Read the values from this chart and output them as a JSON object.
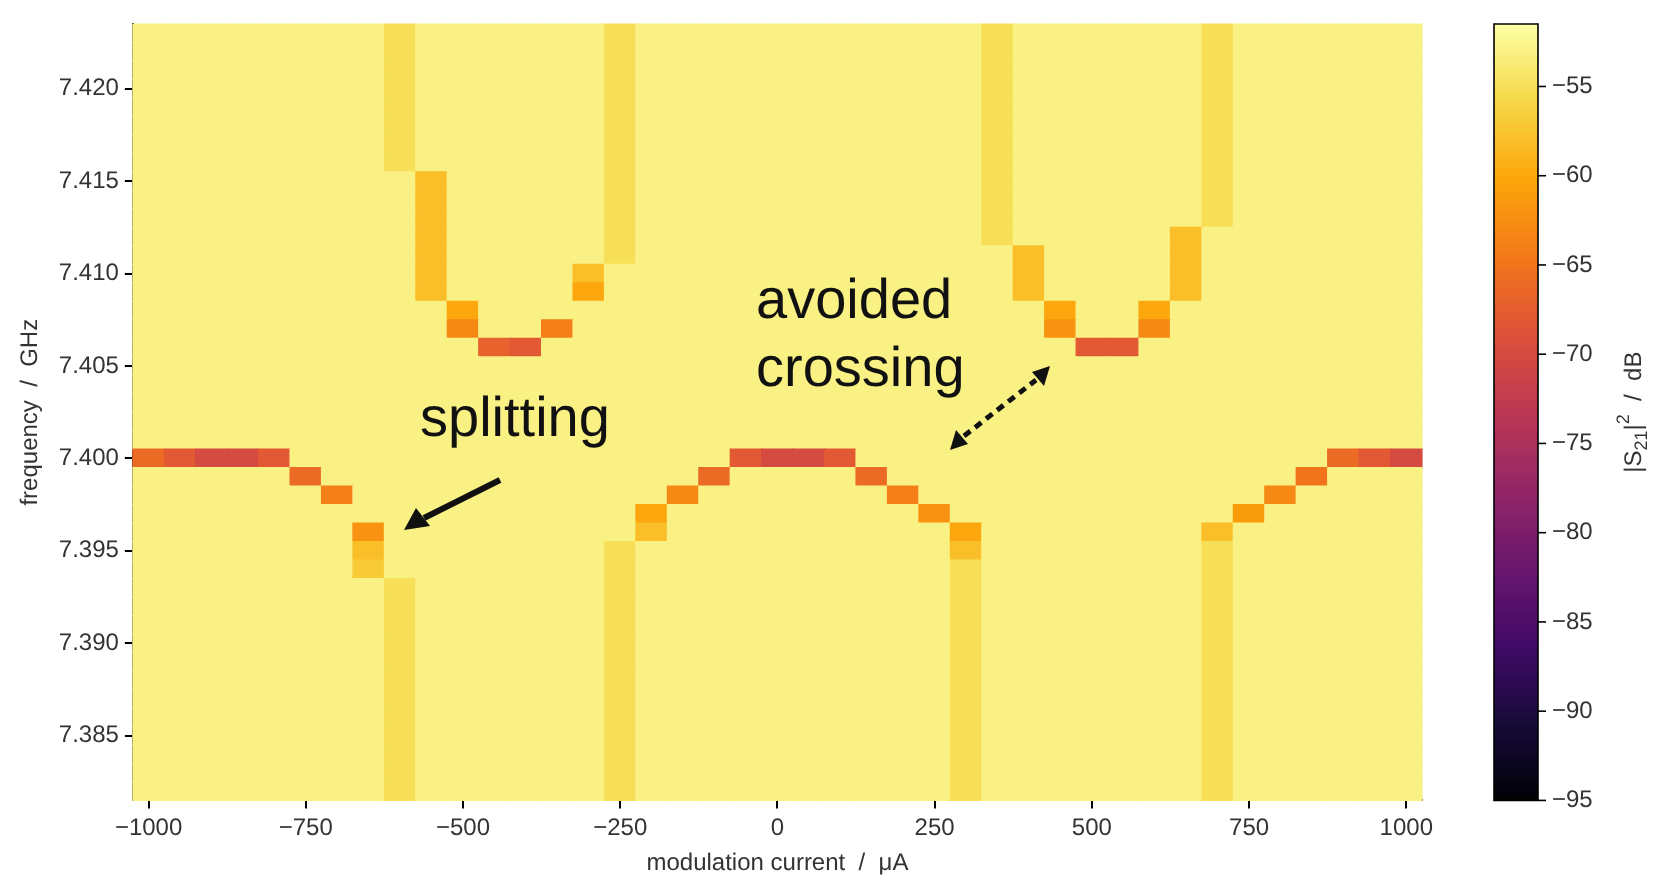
{
  "chart_data": {
    "type": "heatmap",
    "xlabel": "modulation current  /  μA",
    "ylabel": "frequency  /  GHz",
    "clabel": "|S$_{21}$|$^{2}$  /  dB",
    "annotations": [
      "splitting",
      "avoided crossing"
    ],
    "categories": [
      "−1000",
      null,
      null,
      null,
      null,
      "−750",
      null,
      null,
      null,
      null,
      "−500",
      null,
      null,
      null,
      null,
      "−250",
      null,
      null,
      null,
      null,
      "0",
      null,
      null,
      null,
      null,
      "250",
      null,
      null,
      null,
      null,
      "500",
      null,
      null,
      null,
      null,
      "750",
      null,
      null,
      null,
      null,
      "1000"
    ],
    "y_categories": [
      null,
      null,
      null,
      "7.420",
      null,
      null,
      null,
      null,
      "7.415",
      null,
      null,
      null,
      null,
      "7.410",
      null,
      null,
      null,
      null,
      "7.405",
      null,
      null,
      null,
      null,
      "7.400",
      null,
      null,
      null,
      null,
      "7.395",
      null,
      null,
      null,
      null,
      "7.390",
      null,
      null,
      null,
      null,
      "7.385",
      null,
      null,
      null
    ],
    "clim": [
      -95,
      -51.5
    ],
    "cticks": [
      -95,
      -90,
      -85,
      -80,
      -75,
      -70,
      -65,
      -60,
      -55
    ],
    "cells": [
      [
        -53,
        -53,
        -53,
        -53,
        -53,
        -53,
        -53,
        -53,
        -55,
        -53,
        -53,
        -53,
        -53,
        -53,
        -53,
        -55,
        -53,
        -53,
        -53,
        -53,
        -53,
        -53,
        -53,
        -53,
        -53,
        -53,
        -53,
        -55,
        -53,
        -53,
        -53,
        -53,
        -53,
        -53,
        -55,
        -53,
        -53,
        -53,
        -53,
        -53,
        -53
      ],
      [
        -53,
        -53,
        -53,
        -53,
        -53,
        -53,
        -53,
        -53,
        -55,
        -53,
        -53,
        -53,
        -53,
        -53,
        -53,
        -55,
        -53,
        -53,
        -53,
        -53,
        -53,
        -53,
        -53,
        -53,
        -53,
        -53,
        -53,
        -55,
        -53,
        -53,
        -53,
        -53,
        -53,
        -53,
        -55,
        -53,
        -53,
        -53,
        -53,
        -53,
        -53
      ],
      [
        -53,
        -53,
        -53,
        -53,
        -53,
        -53,
        -53,
        -53,
        -55,
        -53,
        -53,
        -53,
        -53,
        -53,
        -53,
        -55,
        -53,
        -53,
        -53,
        -53,
        -53,
        -53,
        -53,
        -53,
        -53,
        -53,
        -53,
        -55,
        -53,
        -53,
        -53,
        -53,
        -53,
        -53,
        -55,
        -53,
        -53,
        -53,
        -53,
        -53,
        -53
      ],
      [
        -53,
        -53,
        -53,
        -53,
        -53,
        -53,
        -53,
        -53,
        -55,
        -53,
        -53,
        -53,
        -53,
        -53,
        -53,
        -55,
        -53,
        -53,
        -53,
        -53,
        -53,
        -53,
        -53,
        -53,
        -53,
        -53,
        -53,
        -55,
        -53,
        -53,
        -53,
        -53,
        -53,
        -53,
        -55,
        -53,
        -53,
        -53,
        -53,
        -53,
        -53
      ],
      [
        -53,
        -53,
        -53,
        -53,
        -53,
        -53,
        -53,
        -53,
        -55,
        -53,
        -53,
        -53,
        -53,
        -53,
        -53,
        -55,
        -53,
        -53,
        -53,
        -53,
        -53,
        -53,
        -53,
        -53,
        -53,
        -53,
        -53,
        -55,
        -53,
        -53,
        -53,
        -53,
        -53,
        -53,
        -55,
        -53,
        -53,
        -53,
        -53,
        -53,
        -53
      ],
      [
        -53,
        -53,
        -53,
        -53,
        -53,
        -53,
        -53,
        -53,
        -55,
        -53,
        -53,
        -53,
        -53,
        -53,
        -53,
        -55,
        -53,
        -53,
        -53,
        -53,
        -53,
        -53,
        -53,
        -53,
        -53,
        -53,
        -53,
        -55,
        -53,
        -53,
        -53,
        -53,
        -53,
        -53,
        -55,
        -53,
        -53,
        -53,
        -53,
        -53,
        -53
      ],
      [
        -53,
        -53,
        -53,
        -53,
        -53,
        -53,
        -53,
        -53,
        -55,
        -53,
        -53,
        -53,
        -53,
        -53,
        -53,
        -55,
        -53,
        -53,
        -53,
        -53,
        -53,
        -53,
        -53,
        -53,
        -53,
        -53,
        -53,
        -55,
        -53,
        -53,
        -53,
        -53,
        -53,
        -53,
        -55,
        -53,
        -53,
        -53,
        -53,
        -53,
        -53
      ],
      [
        -53,
        -53,
        -53,
        -53,
        -53,
        -53,
        -53,
        -53,
        -55,
        -53,
        -53,
        -53,
        -53,
        -53,
        -53,
        -55,
        -53,
        -53,
        -53,
        -53,
        -53,
        -53,
        -53,
        -53,
        -53,
        -53,
        -53,
        -55,
        -53,
        -53,
        -53,
        -53,
        -53,
        -53,
        -55,
        -53,
        -53,
        -53,
        -53,
        -53,
        -53
      ],
      [
        -53,
        -53,
        -53,
        -53,
        -53,
        -53,
        -53,
        -53,
        -53,
        -58,
        -53,
        -53,
        -53,
        -53,
        -53,
        -55,
        -53,
        -53,
        -53,
        -53,
        -53,
        -53,
        -53,
        -53,
        -53,
        -53,
        -53,
        -55,
        -53,
        -53,
        -53,
        -53,
        -53,
        -53,
        -55,
        -53,
        -53,
        -53,
        -53,
        -53,
        -53
      ],
      [
        -53,
        -53,
        -53,
        -53,
        -53,
        -53,
        -53,
        -53,
        -53,
        -58,
        -53,
        -53,
        -53,
        -53,
        -53,
        -55,
        -53,
        -53,
        -53,
        -53,
        -53,
        -53,
        -53,
        -53,
        -53,
        -53,
        -53,
        -55,
        -53,
        -53,
        -53,
        -53,
        -53,
        -53,
        -55,
        -53,
        -53,
        -53,
        -53,
        -53,
        -53
      ],
      [
        -53,
        -53,
        -53,
        -53,
        -53,
        -53,
        -53,
        -53,
        -53,
        -58,
        -53,
        -53,
        -53,
        -53,
        -53,
        -55,
        -53,
        -53,
        -53,
        -53,
        -53,
        -53,
        -53,
        -53,
        -53,
        -53,
        -53,
        -55,
        -53,
        -53,
        -53,
        -53,
        -53,
        -53,
        -55,
        -53,
        -53,
        -53,
        -53,
        -53,
        -53
      ],
      [
        -53,
        -53,
        -53,
        -53,
        -53,
        -53,
        -53,
        -53,
        -53,
        -58,
        -53,
        -53,
        -53,
        -53,
        -53,
        -55,
        -53,
        -53,
        -53,
        -53,
        -53,
        -53,
        -53,
        -53,
        -53,
        -53,
        -53,
        -55,
        -53,
        -53,
        -53,
        -53,
        -53,
        -58,
        -53,
        -53,
        -53,
        -53,
        -53,
        -53,
        -53
      ],
      [
        -53,
        -53,
        -53,
        -53,
        -53,
        -53,
        -53,
        -53,
        -53,
        -58,
        -53,
        -53,
        -53,
        -53,
        -53,
        -55,
        -53,
        -53,
        -53,
        -53,
        -53,
        -53,
        -53,
        -53,
        -53,
        -53,
        -53,
        -53,
        -58,
        -53,
        -53,
        -53,
        -53,
        -58,
        -53,
        -53,
        -53,
        -53,
        -53,
        -53,
        -53
      ],
      [
        -53,
        -53,
        -53,
        -53,
        -53,
        -53,
        -53,
        -53,
        -53,
        -58,
        -53,
        -53,
        -53,
        -53,
        -58,
        -53,
        -53,
        -53,
        -53,
        -53,
        -53,
        -53,
        -53,
        -53,
        -53,
        -53,
        -53,
        -53,
        -58,
        -53,
        -53,
        -53,
        -53,
        -58,
        -53,
        -53,
        -53,
        -53,
        -53,
        -53,
        -53
      ],
      [
        -53,
        -53,
        -53,
        -53,
        -53,
        -53,
        -53,
        -53,
        -53,
        -58,
        -53,
        -53,
        -53,
        -53,
        -60,
        -53,
        -53,
        -53,
        -53,
        -53,
        -53,
        -53,
        -53,
        -53,
        -53,
        -53,
        -53,
        -53,
        -58,
        -53,
        -53,
        -53,
        -53,
        -58,
        -53,
        -53,
        -53,
        -53,
        -53,
        -53,
        -53
      ],
      [
        -53,
        -53,
        -53,
        -53,
        -53,
        -53,
        -53,
        -53,
        -53,
        -53,
        -60,
        -53,
        -53,
        -53,
        -53,
        -53,
        -53,
        -53,
        -53,
        -53,
        -53,
        -53,
        -53,
        -53,
        -53,
        -53,
        -53,
        -53,
        -53,
        -60,
        -53,
        -53,
        -60,
        -53,
        -53,
        -53,
        -53,
        -53,
        -53,
        -53,
        -53
      ],
      [
        -53,
        -53,
        -53,
        -53,
        -53,
        -53,
        -53,
        -53,
        -53,
        -53,
        -63,
        -53,
        -53,
        -64,
        -53,
        -53,
        -53,
        -53,
        -53,
        -53,
        -53,
        -53,
        -53,
        -53,
        -53,
        -53,
        -53,
        -53,
        -53,
        -62,
        -53,
        -53,
        -63,
        -53,
        -53,
        -53,
        -53,
        -53,
        -53,
        -53,
        -53
      ],
      [
        -53,
        -53,
        -53,
        -53,
        -53,
        -53,
        -53,
        -53,
        -53,
        -53,
        -53,
        -67,
        -68,
        -53,
        -53,
        -53,
        -53,
        -53,
        -53,
        -53,
        -53,
        -53,
        -53,
        -53,
        -53,
        -53,
        -53,
        -53,
        -53,
        -53,
        -68,
        -68,
        -53,
        -53,
        -53,
        -53,
        -53,
        -53,
        -53,
        -53,
        -53
      ],
      [
        -53,
        -53,
        -53,
        -53,
        -53,
        -53,
        -53,
        -53,
        -53,
        -53,
        -53,
        -53,
        -53,
        -53,
        -53,
        -53,
        -53,
        -53,
        -53,
        -53,
        -53,
        -53,
        -53,
        -53,
        -53,
        -53,
        -53,
        -53,
        -53,
        -53,
        -53,
        -53,
        -53,
        -53,
        -53,
        -53,
        -53,
        -53,
        -53,
        -53,
        -53
      ],
      [
        -53,
        -53,
        -53,
        -53,
        -53,
        -53,
        -53,
        -53,
        -53,
        -53,
        -53,
        -53,
        -53,
        -53,
        -53,
        -53,
        -53,
        -53,
        -53,
        -53,
        -53,
        -53,
        -53,
        -53,
        -53,
        -53,
        -53,
        -53,
        -53,
        -53,
        -53,
        -53,
        -53,
        -53,
        -53,
        -53,
        -53,
        -53,
        -53,
        -53,
        -53
      ],
      [
        -53,
        -53,
        -53,
        -53,
        -53,
        -53,
        -53,
        -53,
        -53,
        -53,
        -53,
        -53,
        -53,
        -53,
        -53,
        -53,
        -53,
        -53,
        -53,
        -53,
        -53,
        -53,
        -53,
        -53,
        -53,
        -53,
        -53,
        -53,
        -53,
        -53,
        -53,
        -53,
        -53,
        -53,
        -53,
        -53,
        -53,
        -53,
        -53,
        -53,
        -53
      ],
      [
        -53,
        -53,
        -53,
        -53,
        -53,
        -53,
        -53,
        -53,
        -53,
        -53,
        -53,
        -53,
        -53,
        -53,
        -53,
        -53,
        -53,
        -53,
        -53,
        -53,
        -53,
        -53,
        -53,
        -53,
        -53,
        -53,
        -53,
        -53,
        -53,
        -53,
        -53,
        -53,
        -53,
        -53,
        -53,
        -53,
        -53,
        -53,
        -53,
        -53,
        -53
      ],
      [
        -53,
        -53,
        -53,
        -53,
        -53,
        -53,
        -53,
        -53,
        -53,
        -53,
        -53,
        -53,
        -53,
        -53,
        -53,
        -53,
        -53,
        -53,
        -53,
        -53,
        -53,
        -53,
        -53,
        -53,
        -53,
        -53,
        -53,
        -53,
        -53,
        -53,
        -53,
        -53,
        -53,
        -53,
        -53,
        -53,
        -53,
        -53,
        -53,
        -53,
        -53
      ],
      [
        -66,
        -68,
        -70,
        -70,
        -68,
        -53,
        -53,
        -53,
        -53,
        -53,
        -53,
        -53,
        -53,
        -53,
        -53,
        -53,
        -53,
        -53,
        -53,
        -68,
        -70,
        -70,
        -68,
        -53,
        -53,
        -53,
        -53,
        -53,
        -53,
        -53,
        -53,
        -53,
        -53,
        -53,
        -53,
        -53,
        -53,
        -53,
        -66,
        -68,
        -70
      ],
      [
        -53,
        -53,
        -53,
        -53,
        -53,
        -66,
        -53,
        -53,
        -53,
        -53,
        -53,
        -53,
        -53,
        -53,
        -53,
        -53,
        -53,
        -53,
        -66,
        -53,
        -53,
        -53,
        -53,
        -66,
        -53,
        -53,
        -53,
        -53,
        -53,
        -53,
        -53,
        -53,
        -53,
        -53,
        -53,
        -53,
        -53,
        -65,
        -53,
        -53,
        -53
      ],
      [
        -53,
        -53,
        -53,
        -53,
        -53,
        -53,
        -64,
        -53,
        -53,
        -53,
        -53,
        -53,
        -53,
        -53,
        -53,
        -53,
        -53,
        -63,
        -53,
        -53,
        -53,
        -53,
        -53,
        -53,
        -64,
        -53,
        -53,
        -53,
        -53,
        -53,
        -53,
        -53,
        -53,
        -53,
        -53,
        -53,
        -63,
        -53,
        -53,
        -53,
        -53
      ],
      [
        -53,
        -53,
        -53,
        -53,
        -53,
        -53,
        -53,
        -53,
        -53,
        -53,
        -53,
        -53,
        -53,
        -53,
        -53,
        -53,
        -60,
        -53,
        -53,
        -53,
        -53,
        -53,
        -53,
        -53,
        -53,
        -62,
        -53,
        -53,
        -53,
        -53,
        -53,
        -53,
        -53,
        -53,
        -53,
        -61,
        -53,
        -53,
        -53,
        -53,
        -53
      ],
      [
        -53,
        -53,
        -53,
        -53,
        -53,
        -53,
        -53,
        -62,
        -53,
        -53,
        -53,
        -53,
        -53,
        -53,
        -53,
        -53,
        -58,
        -53,
        -53,
        -53,
        -53,
        -53,
        -53,
        -53,
        -53,
        -53,
        -60,
        -53,
        -53,
        -53,
        -53,
        -53,
        -53,
        -53,
        -58,
        -53,
        -53,
        -53,
        -53,
        -53,
        -53
      ],
      [
        -53,
        -53,
        -53,
        -53,
        -53,
        -53,
        -53,
        -58,
        -53,
        -53,
        -53,
        -53,
        -53,
        -53,
        -53,
        -55,
        -53,
        -53,
        -53,
        -53,
        -53,
        -53,
        -53,
        -53,
        -53,
        -53,
        -58,
        -53,
        -53,
        -53,
        -53,
        -53,
        -53,
        -53,
        -55,
        -53,
        -53,
        -53,
        -53,
        -53,
        -53
      ],
      [
        -53,
        -53,
        -53,
        -53,
        -53,
        -53,
        -53,
        -57,
        -53,
        -53,
        -53,
        -53,
        -53,
        -53,
        -53,
        -55,
        -53,
        -53,
        -53,
        -53,
        -53,
        -53,
        -53,
        -53,
        -53,
        -53,
        -55,
        -53,
        -53,
        -53,
        -53,
        -53,
        -53,
        -53,
        -55,
        -53,
        -53,
        -53,
        -53,
        -53,
        -53
      ],
      [
        -53,
        -53,
        -53,
        -53,
        -53,
        -53,
        -53,
        -53,
        -55,
        -53,
        -53,
        -53,
        -53,
        -53,
        -53,
        -55,
        -53,
        -53,
        -53,
        -53,
        -53,
        -53,
        -53,
        -53,
        -53,
        -53,
        -55,
        -53,
        -53,
        -53,
        -53,
        -53,
        -53,
        -53,
        -55,
        -53,
        -53,
        -53,
        -53,
        -53,
        -53
      ],
      [
        -53,
        -53,
        -53,
        -53,
        -53,
        -53,
        -53,
        -53,
        -55,
        -53,
        -53,
        -53,
        -53,
        -53,
        -53,
        -55,
        -53,
        -53,
        -53,
        -53,
        -53,
        -53,
        -53,
        -53,
        -53,
        -53,
        -55,
        -53,
        -53,
        -53,
        -53,
        -53,
        -53,
        -53,
        -55,
        -53,
        -53,
        -53,
        -53,
        -53,
        -53
      ],
      [
        -53,
        -53,
        -53,
        -53,
        -53,
        -53,
        -53,
        -53,
        -55,
        -53,
        -53,
        -53,
        -53,
        -53,
        -53,
        -55,
        -53,
        -53,
        -53,
        -53,
        -53,
        -53,
        -53,
        -53,
        -53,
        -53,
        -55,
        -53,
        -53,
        -53,
        -53,
        -53,
        -53,
        -53,
        -55,
        -53,
        -53,
        -53,
        -53,
        -53,
        -53
      ],
      [
        -53,
        -53,
        -53,
        -53,
        -53,
        -53,
        -53,
        -53,
        -55,
        -53,
        -53,
        -53,
        -53,
        -53,
        -53,
        -55,
        -53,
        -53,
        -53,
        -53,
        -53,
        -53,
        -53,
        -53,
        -53,
        -53,
        -55,
        -53,
        -53,
        -53,
        -53,
        -53,
        -53,
        -53,
        -55,
        -53,
        -53,
        -53,
        -53,
        -53,
        -53
      ],
      [
        -53,
        -53,
        -53,
        -53,
        -53,
        -53,
        -53,
        -53,
        -55,
        -53,
        -53,
        -53,
        -53,
        -53,
        -53,
        -55,
        -53,
        -53,
        -53,
        -53,
        -53,
        -53,
        -53,
        -53,
        -53,
        -53,
        -55,
        -53,
        -53,
        -53,
        -53,
        -53,
        -53,
        -53,
        -55,
        -53,
        -53,
        -53,
        -53,
        -53,
        -53
      ],
      [
        -53,
        -53,
        -53,
        -53,
        -53,
        -53,
        -53,
        -53,
        -55,
        -53,
        -53,
        -53,
        -53,
        -53,
        -53,
        -55,
        -53,
        -53,
        -53,
        -53,
        -53,
        -53,
        -53,
        -53,
        -53,
        -53,
        -55,
        -53,
        -53,
        -53,
        -53,
        -53,
        -53,
        -53,
        -55,
        -53,
        -53,
        -53,
        -53,
        -53,
        -53
      ],
      [
        -53,
        -53,
        -53,
        -53,
        -53,
        -53,
        -53,
        -53,
        -55,
        -53,
        -53,
        -53,
        -53,
        -53,
        -53,
        -55,
        -53,
        -53,
        -53,
        -53,
        -53,
        -53,
        -53,
        -53,
        -53,
        -53,
        -55,
        -53,
        -53,
        -53,
        -53,
        -53,
        -53,
        -53,
        -55,
        -53,
        -53,
        -53,
        -53,
        -53,
        -53
      ],
      [
        -53,
        -53,
        -53,
        -53,
        -53,
        -53,
        -53,
        -53,
        -55,
        -53,
        -53,
        -53,
        -53,
        -53,
        -53,
        -55,
        -53,
        -53,
        -53,
        -53,
        -53,
        -53,
        -53,
        -53,
        -53,
        -53,
        -55,
        -53,
        -53,
        -53,
        -53,
        -53,
        -53,
        -53,
        -55,
        -53,
        -53,
        -53,
        -53,
        -53,
        -53
      ],
      [
        -53,
        -53,
        -53,
        -53,
        -53,
        -53,
        -53,
        -53,
        -55,
        -53,
        -53,
        -53,
        -53,
        -53,
        -53,
        -55,
        -53,
        -53,
        -53,
        -53,
        -53,
        -53,
        -53,
        -53,
        -53,
        -53,
        -55,
        -53,
        -53,
        -53,
        -53,
        -53,
        -53,
        -53,
        -55,
        -53,
        -53,
        -53,
        -53,
        -53,
        -53
      ],
      [
        -53,
        -53,
        -53,
        -53,
        -53,
        -53,
        -53,
        -53,
        -55,
        -53,
        -53,
        -53,
        -53,
        -53,
        -53,
        -55,
        -53,
        -53,
        -53,
        -53,
        -53,
        -53,
        -53,
        -53,
        -53,
        -53,
        -55,
        -53,
        -53,
        -53,
        -53,
        -53,
        -53,
        -53,
        -55,
        -53,
        -53,
        -53,
        -53,
        -53,
        -53
      ],
      [
        -53,
        -53,
        -53,
        -53,
        -53,
        -53,
        -53,
        -53,
        -55,
        -53,
        -53,
        -53,
        -53,
        -53,
        -53,
        -55,
        -53,
        -53,
        -53,
        -53,
        -53,
        -53,
        -53,
        -53,
        -53,
        -53,
        -55,
        -53,
        -53,
        -53,
        -53,
        -53,
        -53,
        -53,
        -55,
        -53,
        -53,
        -53,
        -53,
        -53,
        -53
      ],
      [
        -53,
        -53,
        -53,
        -53,
        -53,
        -53,
        -53,
        -53,
        -55,
        -53,
        -53,
        -53,
        -53,
        -53,
        -53,
        -55,
        -53,
        -53,
        -53,
        -53,
        -53,
        -53,
        -53,
        -53,
        -53,
        -53,
        -55,
        -53,
        -53,
        -53,
        -53,
        -53,
        -53,
        -53,
        -55,
        -53,
        -53,
        -53,
        -53,
        -53,
        -53
      ]
    ]
  }
}
